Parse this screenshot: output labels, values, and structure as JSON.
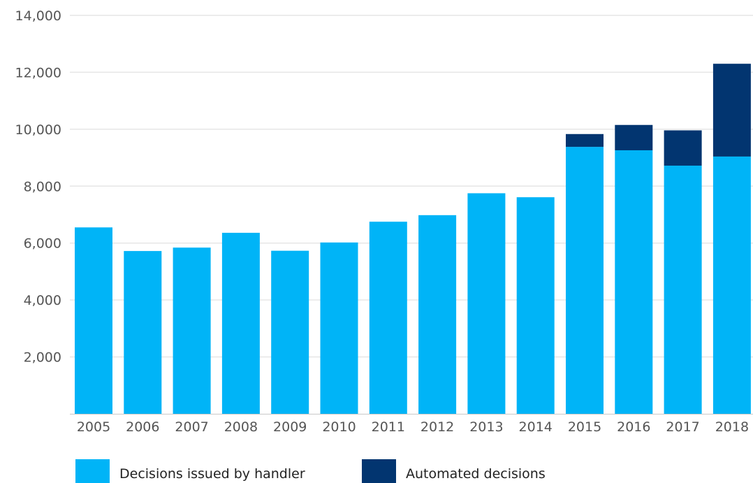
{
  "chart_data": {
    "type": "bar",
    "stacked": true,
    "categories": [
      "2005",
      "2006",
      "2007",
      "2008",
      "2009",
      "2010",
      "2011",
      "2012",
      "2013",
      "2014",
      "2015",
      "2016",
      "2017",
      "2018"
    ],
    "series": [
      {
        "name": "Decisions issued by handler",
        "color": "#00b4f7",
        "values": [
          6550,
          5720,
          5840,
          6360,
          5730,
          6020,
          6750,
          6980,
          7750,
          7610,
          9380,
          9260,
          8720,
          9040
        ]
      },
      {
        "name": "Automated decisions",
        "color": "#023570",
        "values": [
          0,
          0,
          0,
          0,
          0,
          0,
          0,
          0,
          0,
          0,
          450,
          890,
          1240,
          3260
        ]
      }
    ],
    "ylim": [
      0,
      14000
    ],
    "yticks": [
      2000,
      4000,
      6000,
      8000,
      10000,
      12000,
      14000
    ],
    "ytick_labels": [
      "2,000",
      "4,000",
      "6,000",
      "8,000",
      "10,000",
      "12,000",
      "14,000"
    ],
    "grid": true,
    "legend_position": "bottom-left"
  }
}
